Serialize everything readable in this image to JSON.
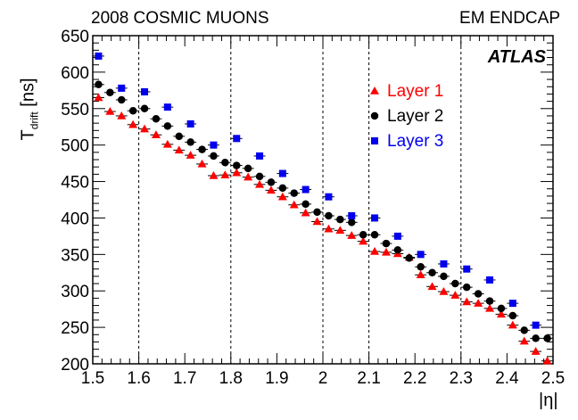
{
  "header": {
    "left": "2008 COSMIC MUONS",
    "right": "EM ENDCAP"
  },
  "chart_data": {
    "type": "scatter",
    "title": "",
    "xlabel": "|η|",
    "ylabel_main": "T",
    "ylabel_sub": "drift",
    "ylabel_unit": "[ns]",
    "xlim": [
      1.5,
      2.5
    ],
    "ylim": [
      200,
      650
    ],
    "x_ticks": [
      "1.5",
      "1.6",
      "1.7",
      "1.8",
      "1.9",
      "2",
      "2.1",
      "2.2",
      "2.3",
      "2.4",
      "2.5"
    ],
    "y_ticks": [
      "200",
      "250",
      "300",
      "350",
      "400",
      "450",
      "500",
      "550",
      "600",
      "650"
    ],
    "vertical_dashed_lines": [
      1.6,
      1.8,
      2.0,
      2.1,
      2.3
    ],
    "experiment_label": "ATLAS",
    "legend_position": "top-right",
    "series": [
      {
        "name": "Layer 1",
        "color": "#ff0000",
        "marker": "triangle",
        "x": [
          1.5125,
          1.5375,
          1.5625,
          1.5875,
          1.6125,
          1.6375,
          1.6625,
          1.6875,
          1.7125,
          1.7375,
          1.7625,
          1.7875,
          1.8125,
          1.8375,
          1.8625,
          1.8875,
          1.9125,
          1.9375,
          1.9625,
          1.9875,
          2.0125,
          2.0375,
          2.0625,
          2.0875,
          2.1125,
          2.1375,
          2.1625,
          2.1875,
          2.2125,
          2.2375,
          2.2625,
          2.2875,
          2.3125,
          2.3375,
          2.3625,
          2.3875,
          2.4125,
          2.4375,
          2.4625,
          2.4875
        ],
        "y": [
          565,
          546,
          540,
          528,
          522,
          514,
          501,
          493,
          486,
          474,
          458,
          459,
          462,
          456,
          446,
          438,
          429,
          418,
          407,
          395,
          385,
          383,
          376,
          368,
          354,
          353,
          351,
          346,
          322,
          306,
          299,
          294,
          285,
          283,
          276,
          268,
          253,
          231,
          217,
          204
        ]
      },
      {
        "name": "Layer 2",
        "color": "#000000",
        "marker": "circle",
        "x": [
          1.5125,
          1.5375,
          1.5625,
          1.5875,
          1.6125,
          1.6375,
          1.6625,
          1.6875,
          1.7125,
          1.7375,
          1.7625,
          1.7875,
          1.8125,
          1.8375,
          1.8625,
          1.8875,
          1.9125,
          1.9375,
          1.9625,
          1.9875,
          2.0125,
          2.0375,
          2.0625,
          2.0875,
          2.1125,
          2.1375,
          2.1625,
          2.1875,
          2.2125,
          2.2375,
          2.2625,
          2.2875,
          2.3125,
          2.3375,
          2.3625,
          2.3875,
          2.4125,
          2.4375,
          2.4625,
          2.4875
        ],
        "y": [
          583,
          572,
          562,
          547,
          550,
          536,
          526,
          512,
          504,
          494,
          485,
          476,
          472,
          468,
          457,
          449,
          441,
          434,
          419,
          408,
          403,
          398,
          394,
          377,
          377,
          365,
          356,
          345,
          333,
          325,
          320,
          310,
          305,
          296,
          286,
          276,
          266,
          246,
          235,
          235
        ]
      },
      {
        "name": "Layer 3",
        "color": "#0000ee",
        "marker": "square",
        "x": [
          1.5125,
          1.5625,
          1.6125,
          1.6625,
          1.7125,
          1.7625,
          1.8125,
          1.8625,
          1.9125,
          1.9625,
          2.0125,
          2.0625,
          2.1125,
          2.1625,
          2.2125,
          2.2625,
          2.3125,
          2.3625,
          2.4125,
          2.4625
        ],
        "y": [
          622,
          578,
          573,
          552,
          529,
          500,
          509,
          485,
          461,
          439,
          429,
          403,
          400,
          375,
          350,
          337,
          330,
          315,
          283,
          253
        ]
      }
    ]
  }
}
